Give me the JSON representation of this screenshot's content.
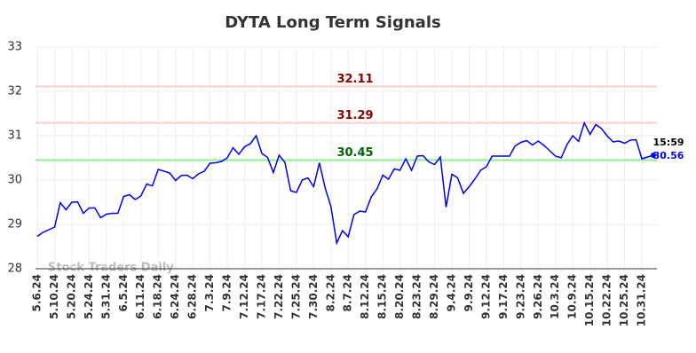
{
  "chart_data": {
    "type": "line",
    "title": "DYTA Long Term Signals",
    "watermark": "Stock Traders Daily",
    "categories": [
      "5.6.24",
      null,
      null,
      "5.10.24",
      null,
      null,
      "5.20.24",
      null,
      null,
      "5.24.24",
      null,
      null,
      "5.31.24",
      null,
      null,
      "6.5.24",
      null,
      null,
      "6.11.24",
      null,
      null,
      "6.18.24",
      null,
      null,
      "6.24.24",
      null,
      null,
      "6.28.24",
      null,
      null,
      "7.3.24",
      null,
      null,
      "7.9.24",
      null,
      null,
      "7.12.24",
      null,
      null,
      "7.17.24",
      null,
      null,
      "7.22.24",
      null,
      null,
      "7.25.24",
      null,
      null,
      "7.30.24",
      null,
      null,
      "8.2.24",
      null,
      null,
      "8.7.24",
      null,
      null,
      "8.12.24",
      null,
      null,
      "8.15.24",
      null,
      null,
      "8.20.24",
      null,
      null,
      "8.23.24",
      null,
      null,
      "8.29.24",
      null,
      null,
      "9.4.24",
      null,
      null,
      "9.9.24",
      null,
      null,
      "9.12.24",
      null,
      null,
      "9.17.24",
      null,
      null,
      "9.23.24",
      null,
      null,
      "9.26.24",
      null,
      null,
      "10.3.24",
      null,
      null,
      "10.9.24",
      null,
      null,
      "10.15.24",
      null,
      null,
      "10.22.24",
      null,
      null,
      "10.25.24",
      null,
      null,
      "10.31.24",
      null,
      null
    ],
    "values": [
      28.73,
      28.82,
      28.88,
      28.94,
      29.49,
      29.33,
      29.5,
      29.51,
      29.25,
      29.37,
      29.37,
      29.15,
      29.23,
      29.25,
      29.25,
      29.63,
      29.67,
      29.56,
      29.64,
      29.91,
      29.87,
      30.24,
      30.2,
      30.16,
      29.99,
      30.1,
      30.11,
      30.03,
      30.14,
      30.2,
      30.38,
      30.39,
      30.42,
      30.5,
      30.73,
      30.58,
      30.75,
      30.82,
      31.0,
      30.6,
      30.51,
      30.17,
      30.56,
      30.4,
      29.76,
      29.72,
      30.0,
      30.05,
      29.85,
      30.39,
      29.82,
      29.4,
      28.58,
      28.86,
      28.72,
      29.22,
      29.3,
      29.28,
      29.62,
      29.8,
      30.11,
      30.02,
      30.25,
      30.22,
      30.48,
      30.22,
      30.54,
      30.55,
      30.41,
      30.35,
      30.52,
      29.39,
      30.13,
      30.05,
      29.7,
      29.85,
      30.02,
      30.22,
      30.3,
      30.54,
      30.54,
      30.54,
      30.54,
      30.77,
      30.85,
      30.89,
      30.79,
      30.88,
      30.78,
      30.66,
      30.54,
      30.5,
      30.8,
      31.0,
      30.87,
      31.29,
      31.03,
      31.25,
      31.16,
      30.99,
      30.86,
      30.88,
      30.83,
      30.9,
      30.91,
      30.48,
      30.52,
      30.56
    ],
    "color": "#0000ee",
    "last_time": "15:59",
    "hlines": [
      {
        "value": 32.11,
        "color": "#ffcccc",
        "label_color": "#8b0000"
      },
      {
        "value": 31.29,
        "color": "#ffcccc",
        "label_color": "#8b0000"
      },
      {
        "value": 30.45,
        "color": "#90ee90",
        "label_color": "#006400"
      }
    ],
    "ylim": [
      28,
      33
    ],
    "yticks": [
      28,
      29,
      30,
      31,
      32,
      33
    ],
    "grid": true
  }
}
